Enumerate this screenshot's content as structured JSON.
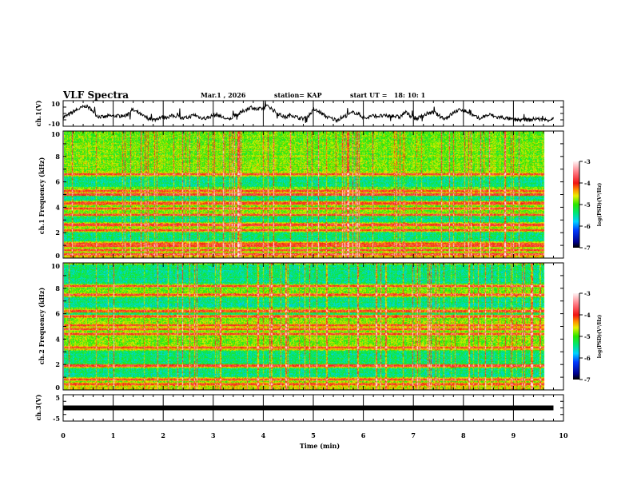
{
  "header": {
    "title": "VLF Spectra",
    "date": "Mar.1 , 2026",
    "station": "station= KAP",
    "start": "start UT =   18: 10: 1"
  },
  "chart_data": [
    {
      "type": "line",
      "panel": "ch1-waveform",
      "ylabel": "ch.1(V)",
      "ylim": [
        -10,
        10
      ],
      "ytick_labels": [
        "10",
        "-10"
      ],
      "x_range_min": [
        0,
        9.8
      ],
      "values": [
        -3,
        -1,
        2,
        4,
        6,
        3,
        -2,
        -3,
        -2,
        -2,
        -2,
        -2,
        3,
        1,
        -2,
        -4,
        -5,
        -3,
        -3,
        -2,
        -2,
        -4,
        -3,
        -1,
        -3,
        -4,
        -2,
        -1,
        -3,
        -5,
        -2,
        0,
        3,
        5,
        3,
        4,
        6,
        2,
        -1,
        -3,
        -1,
        -3,
        -4,
        -2,
        3,
        1,
        -2,
        -4,
        -5,
        -3,
        -1,
        1,
        -1,
        -4,
        -2,
        -2,
        -2,
        -2,
        -2,
        -3,
        1,
        -2,
        -4,
        -2,
        0,
        1,
        -2,
        -4,
        -1,
        2,
        3,
        1,
        -2,
        -4,
        -2,
        -1,
        -3,
        -3,
        -4,
        -5,
        -5,
        -5,
        -5,
        -4,
        -5,
        -5,
        -4
      ]
    },
    {
      "type": "heatmap",
      "panel": "ch1-spectrogram",
      "ylabel": "ch.1 Frequency (kHz)",
      "ylim": [
        0,
        10
      ],
      "ytick_labels": [
        "0",
        "2",
        "4",
        "6",
        "8",
        "10"
      ],
      "x_range_min": [
        0,
        9.8
      ],
      "strong_lines_khz": [
        0.3,
        0.6,
        0.9,
        1.1,
        2.2,
        2.6,
        3.4,
        3.9,
        4.3,
        5.0,
        5.3,
        6.6
      ],
      "quiet_bands_khz": [
        [
          1.3,
          2.0
        ],
        [
          2.8,
          3.3
        ],
        [
          4.5,
          4.9
        ],
        [
          5.6,
          6.4
        ]
      ],
      "colorbar": {
        "label": "log(PSD)(V²/Hz)",
        "range": [
          -7,
          -3
        ],
        "tick_labels": [
          "-3",
          "-4",
          "-5",
          "-6",
          "-7"
        ]
      }
    },
    {
      "type": "heatmap",
      "panel": "ch2-spectrogram",
      "ylabel": "ch.2 Frequency (kHz)",
      "ylim": [
        0,
        10
      ],
      "ytick_labels": [
        "0",
        "2",
        "4",
        "6",
        "8",
        "10"
      ],
      "x_range_min": [
        0,
        9.8
      ],
      "strong_lines_khz": [
        0.4,
        0.8,
        1.9,
        3.3,
        4.4,
        4.8,
        5.1,
        5.8,
        6.2,
        7.5,
        8.2
      ],
      "quiet_bands_khz": [
        [
          1.0,
          1.7
        ],
        [
          2.0,
          3.1
        ],
        [
          5.9,
          6.1
        ],
        [
          6.5,
          7.3
        ],
        [
          8.4,
          9.9
        ]
      ],
      "colorbar": {
        "label": "log(PSD)(V²/Hz)",
        "range": [
          -7,
          -3
        ],
        "tick_labels": [
          "-3",
          "-4",
          "-5",
          "-6",
          "-7"
        ]
      }
    },
    {
      "type": "line",
      "panel": "ch3-waveform",
      "ylabel": "ch.3(V)",
      "ylim": [
        -5,
        5
      ],
      "ytick_labels": [
        "5",
        "-5"
      ],
      "x_range_min": [
        0,
        9.8
      ],
      "values": [
        0,
        0
      ]
    }
  ],
  "xaxis": {
    "label": "Time (min)",
    "range": [
      0,
      10
    ],
    "tick_labels": [
      "0",
      "1",
      "2",
      "3",
      "4",
      "5",
      "6",
      "7",
      "8",
      "9",
      "10"
    ]
  }
}
